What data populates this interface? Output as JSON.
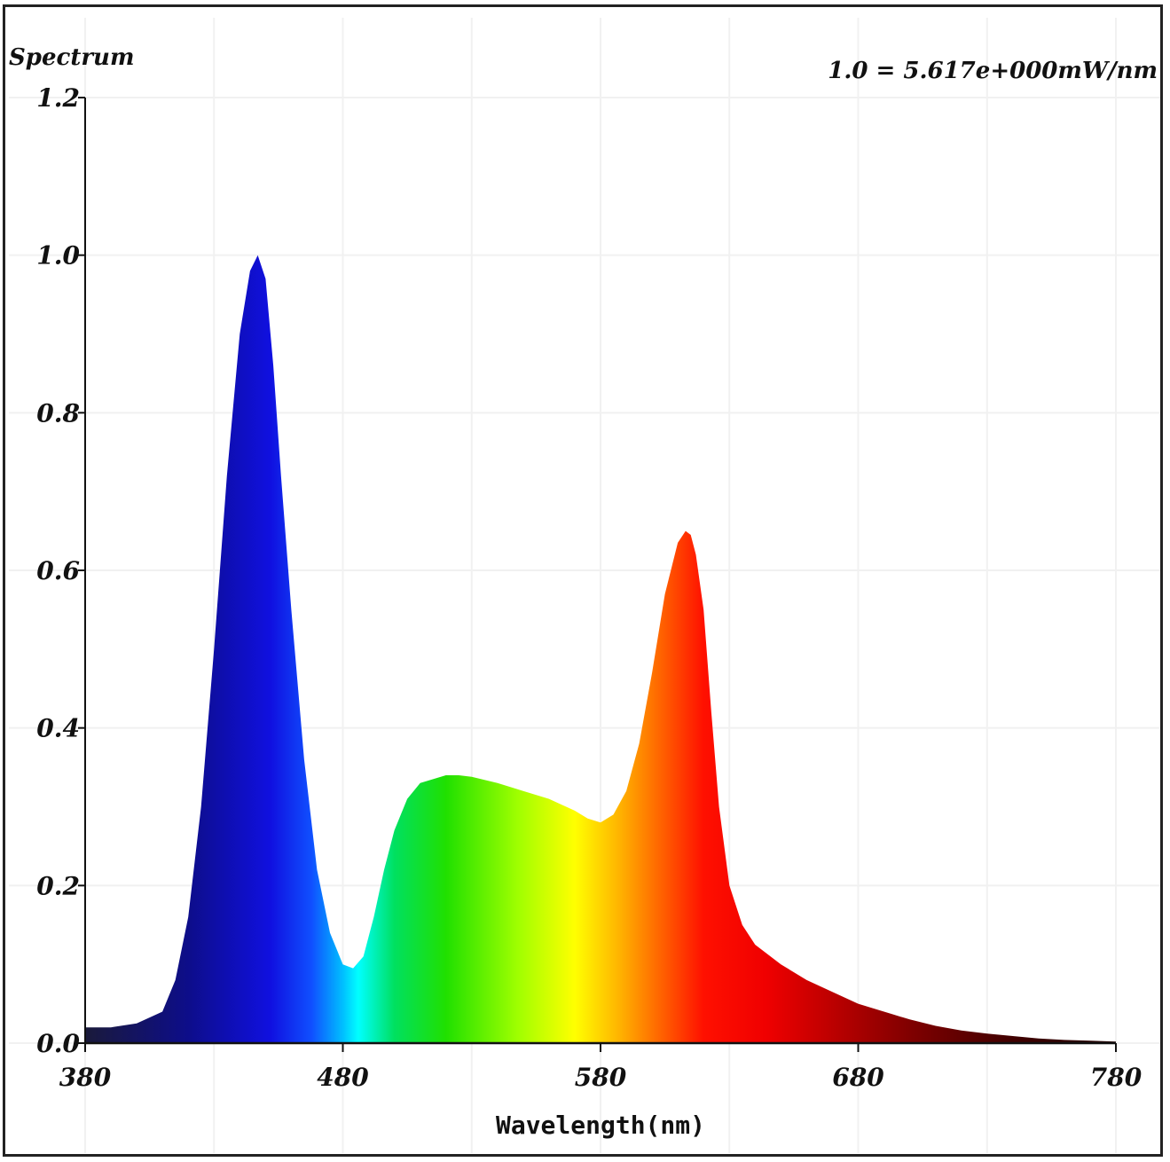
{
  "chart_data": {
    "type": "area",
    "title": "Spectrum",
    "scale_note": "1.0 = 5.617e+000mW/nm",
    "xlabel": "Wavelength(nm)",
    "ylabel": "",
    "xlim": [
      380,
      780
    ],
    "ylim": [
      0.0,
      1.2
    ],
    "x_ticks": [
      380,
      480,
      580,
      680,
      780
    ],
    "x_tick_labels": [
      "380",
      "480",
      "580",
      "680",
      "780"
    ],
    "y_ticks": [
      0.0,
      0.2,
      0.4,
      0.6,
      0.8,
      1.0,
      1.2
    ],
    "y_tick_labels": [
      "0.0",
      "0.2",
      "0.4",
      "0.6",
      "0.8",
      "1.0",
      "1.2"
    ],
    "grid": true,
    "fill": "visible-spectrum gradient",
    "series": [
      {
        "x": [
          380,
          390,
          400,
          410,
          415,
          420,
          425,
          430,
          435,
          440,
          444,
          447,
          450,
          453,
          456,
          460,
          465,
          470,
          475,
          480,
          484,
          488,
          492,
          496,
          500,
          505,
          510,
          515,
          520,
          525,
          530,
          540,
          550,
          560,
          570,
          575,
          580,
          585,
          590,
          595,
          600,
          605,
          610,
          613,
          615,
          617,
          620,
          623,
          626,
          630,
          635,
          640,
          650,
          660,
          670,
          680,
          690,
          700,
          710,
          720,
          730,
          740,
          750,
          760,
          770,
          780
        ],
        "values": [
          0.02,
          0.02,
          0.025,
          0.04,
          0.08,
          0.16,
          0.3,
          0.5,
          0.72,
          0.9,
          0.98,
          1.0,
          0.97,
          0.86,
          0.72,
          0.55,
          0.36,
          0.22,
          0.14,
          0.1,
          0.095,
          0.11,
          0.16,
          0.22,
          0.27,
          0.31,
          0.33,
          0.335,
          0.34,
          0.34,
          0.338,
          0.33,
          0.32,
          0.31,
          0.295,
          0.285,
          0.28,
          0.29,
          0.32,
          0.38,
          0.47,
          0.57,
          0.635,
          0.65,
          0.645,
          0.62,
          0.55,
          0.42,
          0.3,
          0.2,
          0.15,
          0.125,
          0.1,
          0.08,
          0.065,
          0.05,
          0.04,
          0.03,
          0.022,
          0.016,
          0.012,
          0.009,
          0.006,
          0.004,
          0.003,
          0.002
        ]
      }
    ]
  }
}
